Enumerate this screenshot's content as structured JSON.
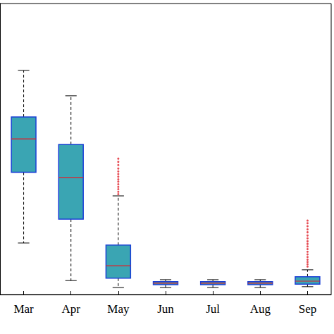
{
  "chart_data": {
    "type": "boxplot",
    "categories": [
      "Mar",
      "Apr",
      "May",
      "Jun",
      "Jul",
      "Aug",
      "Sep"
    ],
    "boxes": [
      {
        "min": 17.7,
        "q1": 42.0,
        "median": 53.5,
        "q3": 61.0,
        "max": 77.0
      },
      {
        "min": 4.8,
        "q1": 25.9,
        "median": 40.2,
        "q3": 51.6,
        "max": 68.3
      },
      {
        "min": 2.4,
        "q1": 5.6,
        "median": 9.9,
        "q3": 17.0,
        "max": 33.9
      },
      {
        "min": 2.4,
        "q1": 3.4,
        "median": 3.9,
        "q3": 4.4,
        "max": 5.1
      },
      {
        "min": 2.4,
        "q1": 3.4,
        "median": 3.9,
        "q3": 4.4,
        "max": 5.1
      },
      {
        "min": 2.4,
        "q1": 3.4,
        "median": 3.9,
        "q3": 4.4,
        "max": 5.1
      },
      {
        "min": 2.7,
        "q1": 3.6,
        "median": 4.6,
        "q3": 6.1,
        "max": 8.5
      }
    ],
    "outliers": [
      [],
      [],
      [
        34.5,
        35.3,
        36.2,
        37.0,
        37.9,
        38.8,
        39.6,
        40.5,
        41.4,
        42.3,
        43.3,
        44.5,
        45.6,
        46.7
      ],
      [],
      [],
      [],
      [
        9.6,
        10.4,
        11.2,
        12.0,
        12.9,
        13.8,
        14.7,
        15.6,
        16.5,
        17.4,
        18.3,
        19.3,
        20.3,
        21.4,
        22.4,
        23.5,
        24.5,
        25.4
      ]
    ],
    "color": "#3aa5b3",
    "ylim": [
      0,
      100
    ],
    "grid": false,
    "tick_labels": "x"
  }
}
